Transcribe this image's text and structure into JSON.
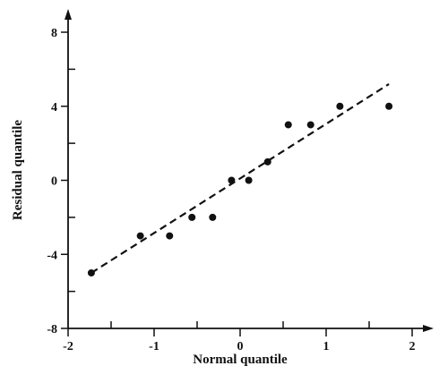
{
  "chart_data": {
    "type": "scatter",
    "title": "",
    "xlabel": "Normal quantile",
    "ylabel": "Residual quantile",
    "xlim": [
      -2,
      2
    ],
    "ylim": [
      -8,
      8
    ],
    "xticks": [
      -2,
      -1,
      0,
      1,
      2
    ],
    "yticks": [
      -8,
      -4,
      0,
      4,
      8
    ],
    "xtick_labels": [
      "-2",
      "-1",
      "0",
      "1",
      "2"
    ],
    "ytick_labels": [
      "-8",
      "-4",
      "0",
      "4",
      "8"
    ],
    "grid": false,
    "series": [
      {
        "type": "scatter",
        "x": [
          -1.73,
          -1.16,
          -0.82,
          -0.56,
          -0.32,
          -0.1,
          0.1,
          0.32,
          0.56,
          0.82,
          1.16,
          1.73
        ],
        "y": [
          -5,
          -3,
          -3,
          -2,
          -2,
          0,
          0,
          1,
          3,
          3,
          4,
          4
        ]
      },
      {
        "type": "line",
        "style": "dashed",
        "x": [
          -1.73,
          1.73
        ],
        "y": [
          -5,
          5.2
        ]
      }
    ]
  }
}
